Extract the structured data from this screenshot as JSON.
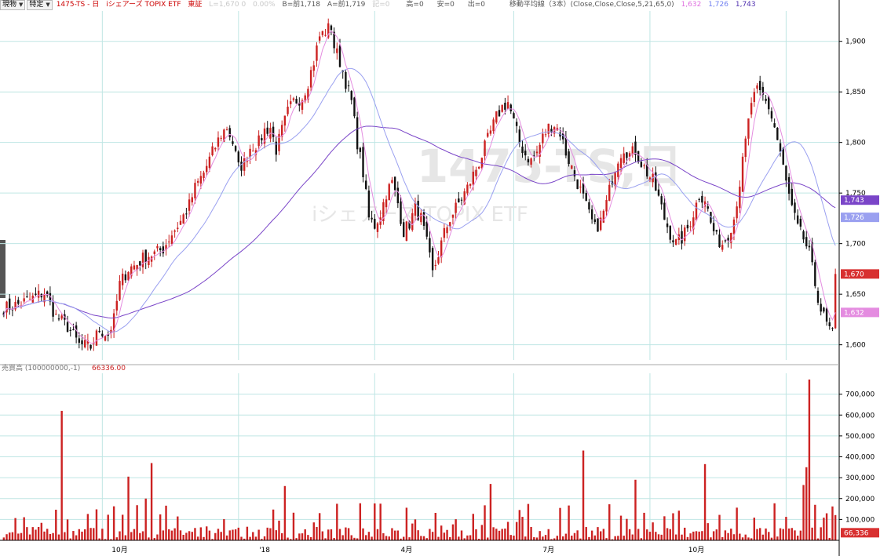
{
  "header": {
    "dropdown1": "現物",
    "dropdown2": "特定",
    "symbol": "1475-TS - 日",
    "name": "iシェアーズ  TOPIX  ETF",
    "market": "東証",
    "last": "L=1,670  0",
    "change": "0.00%",
    "bid": "B=前1,718",
    "ask": "A=前1,719",
    "size": "記=0",
    "high": "高=0",
    "low": "安=0",
    "volume": "出=0",
    "ma_label": "移動平均線（3本）(Close,Close,Close,5,21,65,0)",
    "ma_values": [
      "1,632",
      "1,726",
      "1,743"
    ]
  },
  "watermark": {
    "line1": "1475-TS,日",
    "line2": "iシェアーズ TOPIX ETF"
  },
  "volume_label": "売買高 (100000000,-1)",
  "volume_value": "66336.00",
  "colors": {
    "up": "#cc2222",
    "down": "#111111",
    "ma5": "#e48ce0",
    "ma21": "#9aa0f0",
    "ma65": "#7a45c8",
    "grid": "#bfe6e4"
  },
  "chart_data": [
    {
      "type": "candlestick",
      "y_ticks": [
        "1,600",
        "1,650",
        "1,700",
        "1,750",
        "1,800",
        "1,850",
        "1,900"
      ],
      "ylim": [
        1585,
        1930
      ],
      "x_labels": [
        "10月",
        "'18",
        "4月",
        "7月",
        "10月"
      ],
      "price_tags": [
        "1,743",
        "1,726",
        "1,670",
        "1,632"
      ],
      "close_path": [
        [
          0,
          1636
        ],
        [
          5,
          1640
        ],
        [
          10,
          1646
        ],
        [
          14,
          1652
        ],
        [
          18,
          1628
        ],
        [
          22,
          1618
        ],
        [
          26,
          1600
        ],
        [
          30,
          1598
        ],
        [
          33,
          1615
        ],
        [
          36,
          1610
        ],
        [
          38,
          1625
        ],
        [
          40,
          1660
        ],
        [
          43,
          1675
        ],
        [
          46,
          1680
        ],
        [
          49,
          1688
        ],
        [
          52,
          1690
        ],
        [
          55,
          1695
        ],
        [
          58,
          1710
        ],
        [
          61,
          1722
        ],
        [
          64,
          1738
        ],
        [
          66,
          1755
        ],
        [
          69,
          1770
        ],
        [
          72,
          1790
        ],
        [
          75,
          1808
        ],
        [
          77,
          1815
        ],
        [
          79,
          1800
        ],
        [
          81,
          1775
        ],
        [
          83,
          1780
        ],
        [
          85,
          1795
        ],
        [
          88,
          1800
        ],
        [
          90,
          1812
        ],
        [
          92,
          1815
        ],
        [
          94,
          1793
        ],
        [
          96,
          1812
        ],
        [
          98,
          1830
        ],
        [
          100,
          1840
        ],
        [
          103,
          1845
        ],
        [
          105,
          1860
        ],
        [
          107,
          1880
        ],
        [
          109,
          1905
        ],
        [
          111,
          1910
        ],
        [
          113,
          1915
        ],
        [
          114,
          1895
        ],
        [
          116,
          1880
        ],
        [
          118,
          1860
        ],
        [
          120,
          1840
        ],
        [
          122,
          1800
        ],
        [
          124,
          1770
        ],
        [
          126,
          1725
        ],
        [
          128,
          1718
        ],
        [
          130,
          1730
        ],
        [
          132,
          1750
        ],
        [
          134,
          1760
        ],
        [
          136,
          1740
        ],
        [
          138,
          1712
        ],
        [
          140,
          1720
        ],
        [
          142,
          1735
        ],
        [
          144,
          1725
        ],
        [
          146,
          1700
        ],
        [
          148,
          1670
        ],
        [
          150,
          1690
        ],
        [
          152,
          1710
        ],
        [
          154,
          1725
        ],
        [
          156,
          1735
        ],
        [
          158,
          1745
        ],
        [
          160,
          1755
        ],
        [
          162,
          1768
        ],
        [
          164,
          1780
        ],
        [
          166,
          1795
        ],
        [
          168,
          1810
        ],
        [
          170,
          1825
        ],
        [
          172,
          1835
        ],
        [
          174,
          1840
        ],
        [
          176,
          1820
        ],
        [
          178,
          1800
        ],
        [
          180,
          1788
        ],
        [
          182,
          1782
        ],
        [
          184,
          1790
        ],
        [
          186,
          1805
        ],
        [
          188,
          1815
        ],
        [
          190,
          1818
        ],
        [
          192,
          1810
        ],
        [
          194,
          1790
        ],
        [
          196,
          1775
        ],
        [
          198,
          1760
        ],
        [
          200,
          1745
        ],
        [
          202,
          1728
        ],
        [
          204,
          1715
        ],
        [
          206,
          1722
        ],
        [
          208,
          1740
        ],
        [
          210,
          1765
        ],
        [
          212,
          1785
        ],
        [
          214,
          1795
        ],
        [
          216,
          1788
        ],
        [
          218,
          1792
        ],
        [
          220,
          1780
        ],
        [
          222,
          1770
        ],
        [
          224,
          1762
        ],
        [
          226,
          1745
        ],
        [
          228,
          1725
        ],
        [
          230,
          1710
        ],
        [
          232,
          1700
        ],
        [
          234,
          1705
        ],
        [
          236,
          1715
        ],
        [
          238,
          1730
        ],
        [
          240,
          1748
        ],
        [
          242,
          1745
        ],
        [
          244,
          1720
        ],
        [
          246,
          1705
        ],
        [
          248,
          1700
        ],
        [
          250,
          1710
        ],
        [
          252,
          1725
        ],
        [
          254,
          1760
        ],
        [
          256,
          1800
        ],
        [
          258,
          1840
        ],
        [
          260,
          1850
        ],
        [
          262,
          1845
        ],
        [
          264,
          1835
        ],
        [
          266,
          1815
        ],
        [
          268,
          1790
        ],
        [
          270,
          1760
        ],
        [
          272,
          1735
        ],
        [
          274,
          1715
        ],
        [
          276,
          1705
        ],
        [
          278,
          1690
        ],
        [
          280,
          1660
        ],
        [
          282,
          1635
        ],
        [
          284,
          1620
        ],
        [
          286,
          1610
        ],
        [
          287,
          1670
        ]
      ],
      "volume": {
        "ylim": [
          0,
          800000
        ],
        "y_ticks": [
          "100,000",
          "200,000",
          "300,000",
          "400,000",
          "500,000",
          "600,000",
          "700,000"
        ],
        "current_tag": "66,336",
        "spikes": [
          [
            20,
            620000
          ],
          [
            22,
            100000
          ],
          [
            43,
            305000
          ],
          [
            49,
            200000
          ],
          [
            51,
            370000
          ],
          [
            97,
            260000
          ],
          [
            115,
            175000
          ],
          [
            168,
            270000
          ],
          [
            200,
            430000
          ],
          [
            218,
            290000
          ],
          [
            242,
            365000
          ],
          [
            278,
            770000
          ],
          [
            277,
            350000
          ],
          [
            276,
            265000
          ],
          [
            280,
            170000
          ]
        ]
      }
    }
  ]
}
